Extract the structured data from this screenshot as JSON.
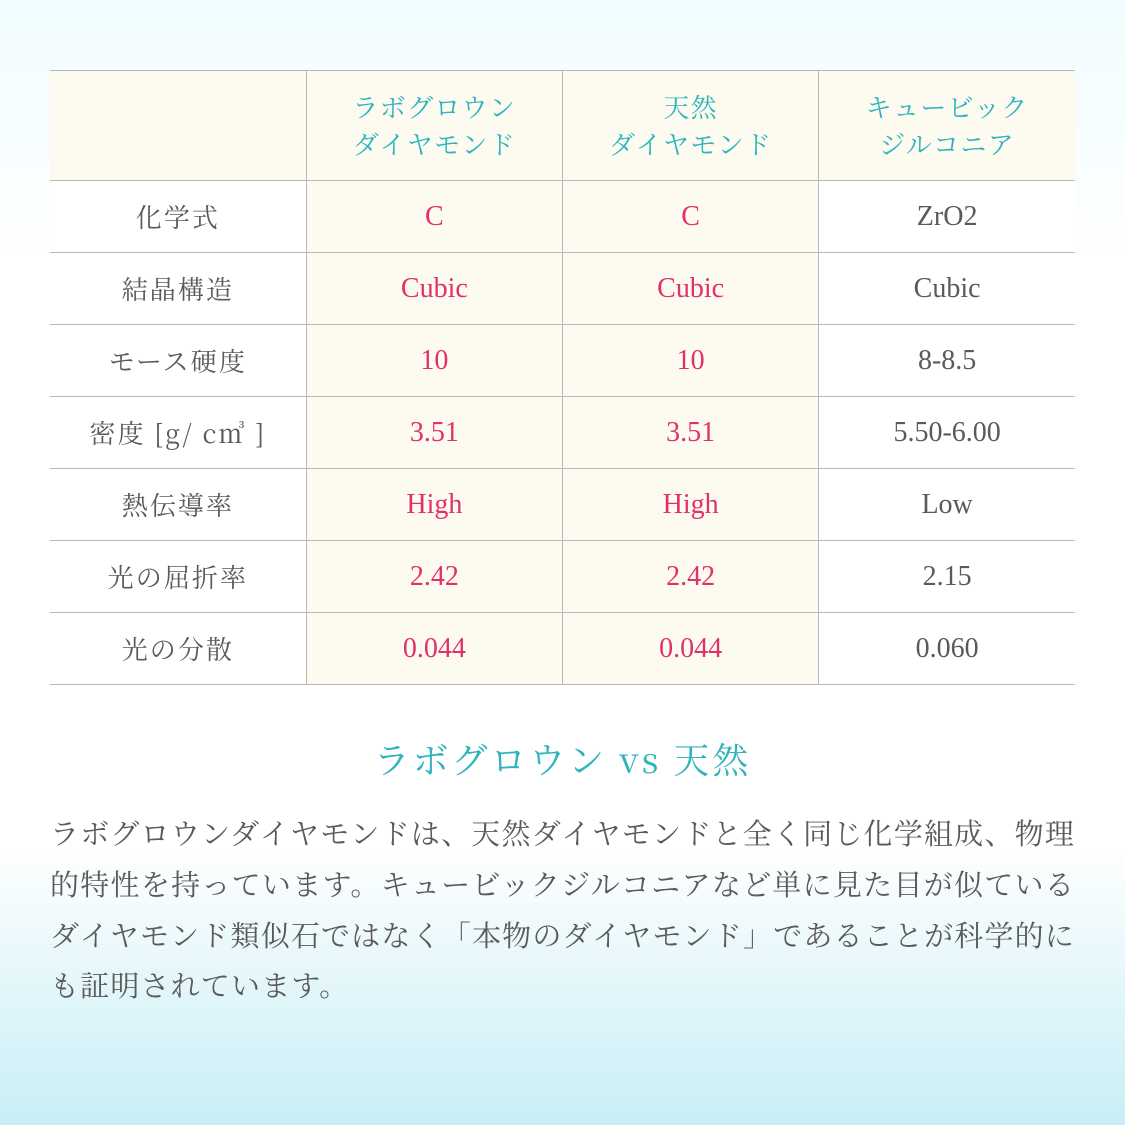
{
  "table": {
    "columns": [
      "",
      "ラボグロウン\nダイヤモンド",
      "天然\nダイヤモンド",
      "キュービック\nジルコニア"
    ],
    "rows": [
      {
        "label": "化学式",
        "cells": [
          "C",
          "C",
          "ZrO2"
        ]
      },
      {
        "label": "結晶構造",
        "cells": [
          "Cubic",
          "Cubic",
          "Cubic"
        ]
      },
      {
        "label": "モース硬度",
        "cells": [
          "10",
          "10",
          "8-8.5"
        ]
      },
      {
        "label": "密度 [g/ c㎥ ]",
        "cells": [
          "3.51",
          "3.51",
          "5.50-6.00"
        ]
      },
      {
        "label": "熱伝導率",
        "cells": [
          "High",
          "High",
          "Low"
        ]
      },
      {
        "label": "光の屈折率",
        "cells": [
          "2.42",
          "2.42",
          "2.15"
        ]
      },
      {
        "label": "光の分散",
        "cells": [
          "0.044",
          "0.044",
          "0.060"
        ]
      }
    ],
    "highlight_columns": [
      1,
      2
    ],
    "header_bg": "#fdfaf0",
    "highlight_bg": "#fdfaf0",
    "highlight_color": "#e0316a",
    "plain_color": "#5a5a5a",
    "border_color": "#b8b8b8",
    "accent_color": "#2fb4bd",
    "header_fontsize": 26,
    "cell_fontsize": 28,
    "rowlabel_fontsize": 26
  },
  "section": {
    "title": "ラボグロウン vs 天然",
    "body": "ラボグロウンダイヤモンドは、天然ダイヤモンドと全く同じ化学組成、物理的特性を持っています。キュービックジルコニアなど単に見た目が似ているダイヤモンド類似石ではなく「本物のダイヤモンド」であることが科学的にも証明されています。",
    "title_color": "#2fb4bd",
    "title_fontsize": 36,
    "body_color": "#5a5a5a",
    "body_fontsize": 29
  },
  "background_gradient": [
    "#f0fcff",
    "#ffffff",
    "#ffffff",
    "#c8eef5"
  ]
}
